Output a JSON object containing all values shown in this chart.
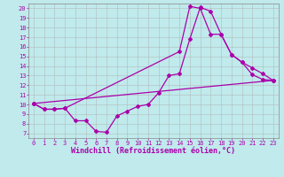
{
  "title": "",
  "xlabel": "Windchill (Refroidissement éolien,°C)",
  "bg_color": "#c0eaec",
  "line_color": "#aa00aa",
  "xlim": [
    -0.5,
    23.5
  ],
  "ylim": [
    6.5,
    20.5
  ],
  "xticks": [
    0,
    1,
    2,
    3,
    4,
    5,
    6,
    7,
    8,
    9,
    10,
    11,
    12,
    13,
    14,
    15,
    16,
    17,
    18,
    19,
    20,
    21,
    22,
    23
  ],
  "yticks": [
    7,
    8,
    9,
    10,
    11,
    12,
    13,
    14,
    15,
    16,
    17,
    18,
    19,
    20
  ],
  "line1_x": [
    0,
    1,
    2,
    3,
    4,
    5,
    6,
    7,
    8,
    9,
    10,
    11,
    12,
    13,
    14,
    15,
    16,
    17,
    18,
    19,
    20,
    21,
    22,
    23
  ],
  "line1_y": [
    10.1,
    9.5,
    9.5,
    9.6,
    8.3,
    8.3,
    7.2,
    7.1,
    8.8,
    9.3,
    9.8,
    10.0,
    11.2,
    13.0,
    13.2,
    16.8,
    20.1,
    19.7,
    17.3,
    15.2,
    14.4,
    13.1,
    12.6,
    12.5
  ],
  "line2_x": [
    0,
    1,
    2,
    3,
    14,
    15,
    16,
    17,
    18,
    19,
    20,
    21,
    22,
    23
  ],
  "line2_y": [
    10.1,
    9.5,
    9.5,
    9.6,
    15.5,
    20.2,
    20.0,
    17.3,
    17.3,
    15.2,
    14.4,
    13.8,
    13.2,
    12.5
  ],
  "line3_x": [
    0,
    23
  ],
  "line3_y": [
    10.1,
    12.5
  ],
  "marker": "D",
  "markersize": 2.0,
  "linewidth": 0.9,
  "tick_fontsize": 5.0,
  "xlabel_fontsize": 6.0,
  "grid_color": "#b0b0b0",
  "grid_linewidth": 0.4
}
